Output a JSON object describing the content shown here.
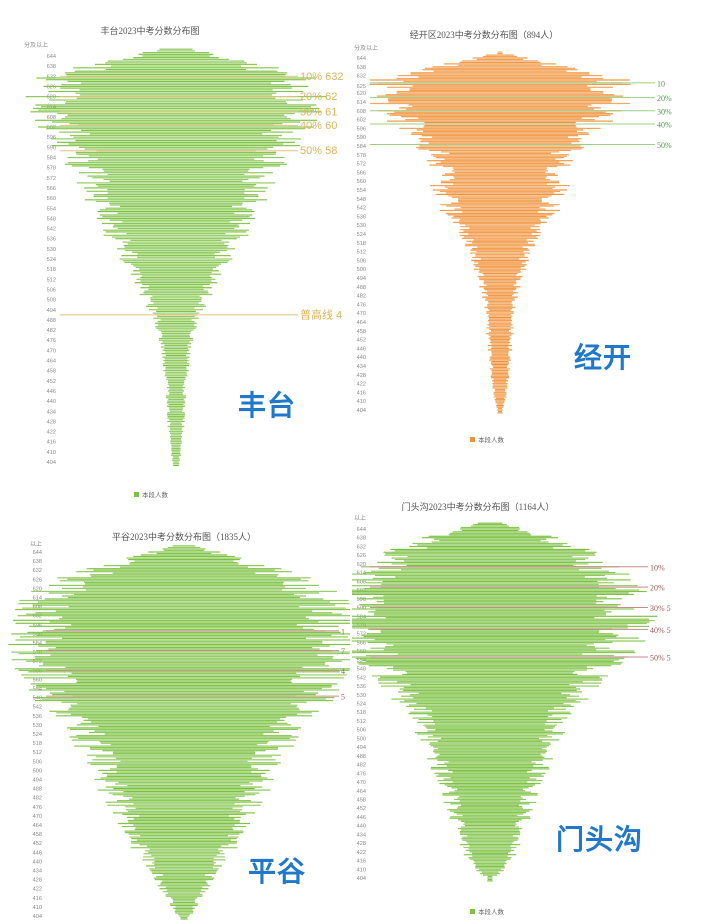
{
  "chart_data": [
    {
      "type": "bar",
      "title": "丰台2023中考分数分布图",
      "yhead": "分及以上",
      "legend": "本段人数",
      "district_label": "丰台",
      "color": "#7cc142",
      "line_color": "#e3c27a",
      "text_color": "#e0b45a",
      "y_ticks": [
        644,
        638,
        632,
        626,
        620,
        614,
        608,
        602,
        596,
        590,
        584,
        578,
        572,
        566,
        560,
        554,
        548,
        542,
        536,
        530,
        524,
        518,
        512,
        506,
        500,
        494,
        488,
        482,
        476,
        470,
        464,
        458,
        452,
        446,
        440,
        434,
        428,
        422,
        416,
        410,
        404
      ],
      "annotations": [
        {
          "score": 632,
          "label": "10% 632"
        },
        {
          "score": 620,
          "label": "20% 62"
        },
        {
          "score": 611,
          "label": "30% 61"
        },
        {
          "score": 603,
          "label": "40% 60"
        },
        {
          "score": 588,
          "label": "50% 58"
        },
        {
          "score": 491,
          "label": "普高线 4"
        }
      ],
      "profile": [
        [
          648,
          0.12
        ],
        [
          640,
          0.55
        ],
        [
          630,
          0.95
        ],
        [
          620,
          1.0
        ],
        [
          605,
          0.92
        ],
        [
          590,
          0.82
        ],
        [
          575,
          0.68
        ],
        [
          560,
          0.6
        ],
        [
          545,
          0.52
        ],
        [
          530,
          0.42
        ],
        [
          515,
          0.32
        ],
        [
          500,
          0.22
        ],
        [
          488,
          0.15
        ],
        [
          470,
          0.1
        ],
        [
          450,
          0.07
        ],
        [
          430,
          0.06
        ],
        [
          410,
          0.04
        ],
        [
          402,
          0.02
        ]
      ]
    },
    {
      "type": "bar",
      "title": "经开区2023中考分数分布图（894人）",
      "yhead": "分及以上",
      "legend": "本段人数",
      "district_label": "经开",
      "color": "#f0923a",
      "line_color": "#9ccf85",
      "text_color": "#4f9a4f",
      "y_ticks": [
        644,
        638,
        632,
        625,
        620,
        614,
        608,
        602,
        596,
        590,
        584,
        578,
        572,
        566,
        560,
        554,
        548,
        542,
        536,
        530,
        524,
        518,
        512,
        506,
        500,
        494,
        488,
        482,
        476,
        470,
        464,
        458,
        452,
        446,
        440,
        434,
        428,
        422,
        416,
        410,
        404
      ],
      "annotations": [
        {
          "score": 627,
          "label": "10"
        },
        {
          "score": 617,
          "label": "20%"
        },
        {
          "score": 608,
          "label": "30%"
        },
        {
          "score": 599,
          "label": "40%"
        },
        {
          "score": 585,
          "label": "50%"
        }
      ],
      "profile": [
        [
          646,
          0.1
        ],
        [
          638,
          0.5
        ],
        [
          628,
          0.95
        ],
        [
          620,
          1.0
        ],
        [
          608,
          0.92
        ],
        [
          596,
          0.75
        ],
        [
          584,
          0.6
        ],
        [
          570,
          0.5
        ],
        [
          556,
          0.5
        ],
        [
          540,
          0.42
        ],
        [
          524,
          0.3
        ],
        [
          510,
          0.22
        ],
        [
          494,
          0.16
        ],
        [
          476,
          0.12
        ],
        [
          460,
          0.1
        ],
        [
          440,
          0.08
        ],
        [
          420,
          0.06
        ],
        [
          406,
          0.03
        ]
      ]
    },
    {
      "type": "bar",
      "title": "平谷2023中考分数分布图（1835人）",
      "yhead": "以上",
      "legend": "本段人数",
      "district_label": "平谷",
      "color": "#7cc142",
      "line_color": "#c98a8a",
      "text_color": "#a05a5a",
      "y_ticks": [
        644,
        638,
        632,
        626,
        620,
        614,
        608,
        602,
        596,
        590,
        584,
        578,
        572,
        566,
        560,
        554,
        548,
        542,
        536,
        530,
        524,
        518,
        512,
        506,
        500,
        494,
        488,
        482,
        476,
        470,
        464,
        458,
        452,
        446,
        440,
        434,
        428,
        422,
        416,
        410,
        404
      ],
      "annotations": [
        {
          "score": 592,
          "label": "1"
        },
        {
          "score": 579,
          "label": "7"
        },
        {
          "score": 566,
          "label": "4"
        },
        {
          "score": 549,
          "label": "5"
        }
      ],
      "profile": [
        [
          648,
          0.08
        ],
        [
          638,
          0.4
        ],
        [
          625,
          0.78
        ],
        [
          610,
          0.95
        ],
        [
          595,
          1.0
        ],
        [
          580,
          1.0
        ],
        [
          565,
          0.95
        ],
        [
          550,
          0.9
        ],
        [
          535,
          0.78
        ],
        [
          520,
          0.65
        ],
        [
          505,
          0.55
        ],
        [
          490,
          0.5
        ],
        [
          475,
          0.42
        ],
        [
          460,
          0.35
        ],
        [
          445,
          0.28
        ],
        [
          430,
          0.18
        ],
        [
          415,
          0.1
        ],
        [
          404,
          0.04
        ]
      ]
    },
    {
      "type": "bar",
      "title": "门头沟2023中考分数分布图（1164人）",
      "yhead": "以上",
      "legend": "本段人数",
      "district_label": "门头沟",
      "color": "#7cc142",
      "line_color": "#c98a8a",
      "text_color": "#a05a5a",
      "y_ticks": [
        644,
        638,
        632,
        626,
        620,
        614,
        608,
        602,
        596,
        590,
        584,
        578,
        572,
        566,
        560,
        554,
        548,
        542,
        536,
        530,
        524,
        518,
        512,
        506,
        500,
        494,
        488,
        482,
        476,
        470,
        464,
        458,
        452,
        446,
        440,
        434,
        428,
        422,
        416,
        410,
        404
      ],
      "annotations": [
        {
          "score": 618,
          "label": "10%"
        },
        {
          "score": 604,
          "label": "20%"
        },
        {
          "score": 590,
          "label": "30% 5"
        },
        {
          "score": 575,
          "label": "40% 5"
        },
        {
          "score": 556,
          "label": "50% 5"
        }
      ],
      "profile": [
        [
          648,
          0.1
        ],
        [
          638,
          0.42
        ],
        [
          625,
          0.72
        ],
        [
          610,
          0.9
        ],
        [
          598,
          1.0
        ],
        [
          585,
          1.0
        ],
        [
          570,
          0.95
        ],
        [
          555,
          0.85
        ],
        [
          540,
          0.7
        ],
        [
          525,
          0.58
        ],
        [
          510,
          0.5
        ],
        [
          495,
          0.44
        ],
        [
          480,
          0.36
        ],
        [
          465,
          0.3
        ],
        [
          450,
          0.26
        ],
        [
          435,
          0.22
        ],
        [
          420,
          0.16
        ],
        [
          406,
          0.06
        ]
      ]
    }
  ]
}
